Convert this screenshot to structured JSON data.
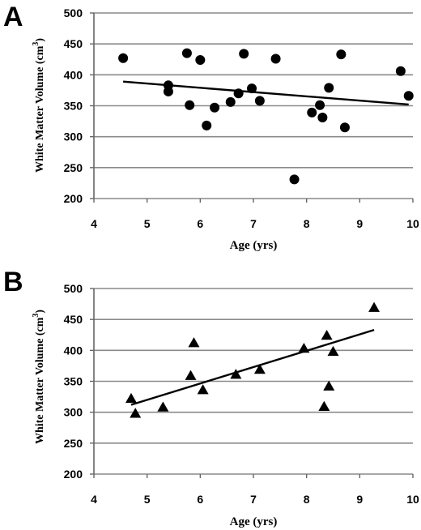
{
  "chart_data": [
    {
      "panel_label": "A",
      "type": "scatter",
      "marker": "circle",
      "xlabel": "Age (yrs)",
      "ylabel": "White Matter Volume (cm",
      "ylabel_sup": "3",
      "ylabel_end": ")",
      "xlim": [
        4,
        10
      ],
      "ylim": [
        200,
        500
      ],
      "xticks": [
        "4",
        "5",
        "6",
        "7",
        "8",
        "9",
        "10"
      ],
      "yticks": [
        "200",
        "250",
        "300",
        "350",
        "400",
        "450",
        "500"
      ],
      "grid": "horizontal",
      "points": [
        {
          "x": 4.55,
          "y": 427
        },
        {
          "x": 5.4,
          "y": 383
        },
        {
          "x": 5.4,
          "y": 373
        },
        {
          "x": 5.75,
          "y": 435
        },
        {
          "x": 5.8,
          "y": 351
        },
        {
          "x": 6.0,
          "y": 424
        },
        {
          "x": 6.12,
          "y": 318
        },
        {
          "x": 6.27,
          "y": 347
        },
        {
          "x": 6.57,
          "y": 356
        },
        {
          "x": 6.72,
          "y": 370
        },
        {
          "x": 6.82,
          "y": 434
        },
        {
          "x": 6.97,
          "y": 378
        },
        {
          "x": 7.12,
          "y": 358
        },
        {
          "x": 7.42,
          "y": 426
        },
        {
          "x": 7.77,
          "y": 231
        },
        {
          "x": 8.1,
          "y": 339
        },
        {
          "x": 8.25,
          "y": 351
        },
        {
          "x": 8.3,
          "y": 331
        },
        {
          "x": 8.42,
          "y": 379
        },
        {
          "x": 8.65,
          "y": 433
        },
        {
          "x": 8.72,
          "y": 315
        },
        {
          "x": 9.77,
          "y": 406
        },
        {
          "x": 9.92,
          "y": 366
        }
      ],
      "trendline": {
        "x": [
          4.55,
          9.92
        ],
        "y": [
          389,
          352
        ]
      }
    },
    {
      "panel_label": "B",
      "type": "scatter",
      "marker": "triangle",
      "xlabel": "Age (yrs)",
      "ylabel": "White Matter Volume (cm",
      "ylabel_sup": "3",
      "ylabel_end": ")",
      "xlim": [
        4,
        10
      ],
      "ylim": [
        200,
        500
      ],
      "xticks": [
        "4",
        "5",
        "6",
        "7",
        "8",
        "9",
        "10"
      ],
      "yticks": [
        "200",
        "250",
        "300",
        "350",
        "400",
        "450",
        "500"
      ],
      "grid": "horizontal",
      "points": [
        {
          "x": 4.7,
          "y": 322
        },
        {
          "x": 4.78,
          "y": 298
        },
        {
          "x": 5.3,
          "y": 308
        },
        {
          "x": 5.82,
          "y": 359
        },
        {
          "x": 5.88,
          "y": 412
        },
        {
          "x": 6.05,
          "y": 336
        },
        {
          "x": 6.67,
          "y": 361
        },
        {
          "x": 7.12,
          "y": 369
        },
        {
          "x": 7.95,
          "y": 403
        },
        {
          "x": 8.33,
          "y": 309
        },
        {
          "x": 8.38,
          "y": 424
        },
        {
          "x": 8.42,
          "y": 342
        },
        {
          "x": 8.5,
          "y": 398
        },
        {
          "x": 9.27,
          "y": 469
        }
      ],
      "trendline": {
        "x": [
          4.7,
          9.27
        ],
        "y": [
          312,
          433
        ]
      }
    }
  ]
}
